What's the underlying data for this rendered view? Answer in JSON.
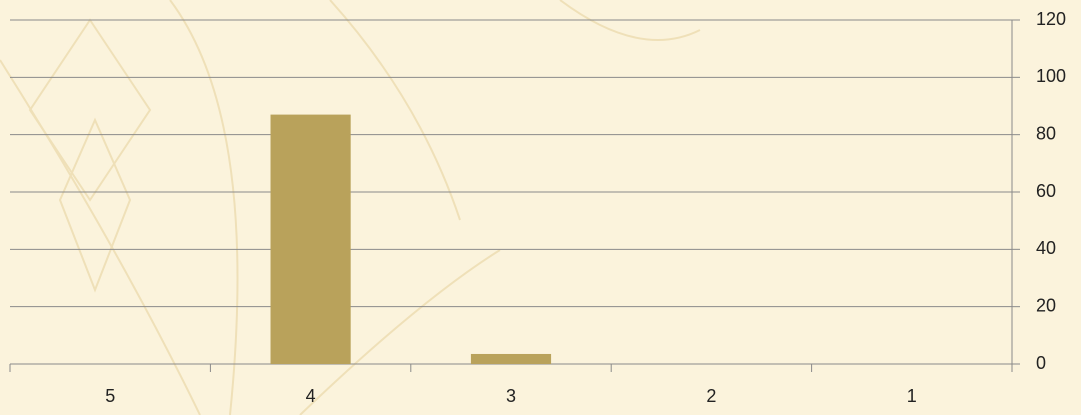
{
  "chart_data": {
    "type": "bar",
    "categories": [
      "5",
      "4",
      "3",
      "2",
      "1"
    ],
    "values": [
      0,
      87,
      3.5,
      0,
      0
    ],
    "color": "#b9a25b",
    "ylim": [
      0,
      120
    ],
    "yticks": [
      0,
      20,
      40,
      60,
      80,
      100,
      120
    ],
    "grid": true,
    "y_axis_side": "right"
  }
}
